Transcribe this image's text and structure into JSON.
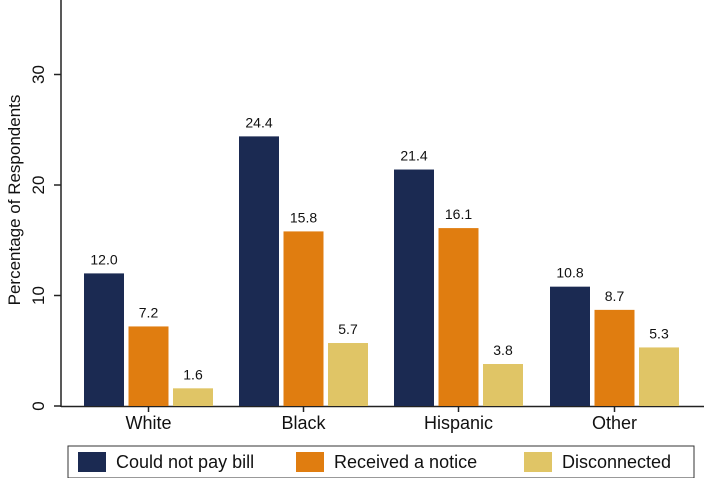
{
  "chart_data": {
    "type": "bar",
    "ylabel": "Percentage of Respondents",
    "xlabel": "",
    "ylim": [
      0,
      37
    ],
    "yticks": [
      0,
      10,
      20,
      30
    ],
    "grid": false,
    "legend_position": "bottom",
    "categories": [
      "White",
      "Black",
      "Hispanic",
      "Other"
    ],
    "series": [
      {
        "name": "Could not pay bill",
        "color": "#1b2a52",
        "values": [
          12.0,
          24.4,
          21.4,
          10.8
        ]
      },
      {
        "name": "Received a notice",
        "color": "#e07d10",
        "values": [
          7.2,
          15.8,
          16.1,
          8.7
        ]
      },
      {
        "name": "Disconnected",
        "color": "#e0c566",
        "values": [
          1.6,
          5.7,
          3.8,
          5.3
        ]
      }
    ]
  }
}
